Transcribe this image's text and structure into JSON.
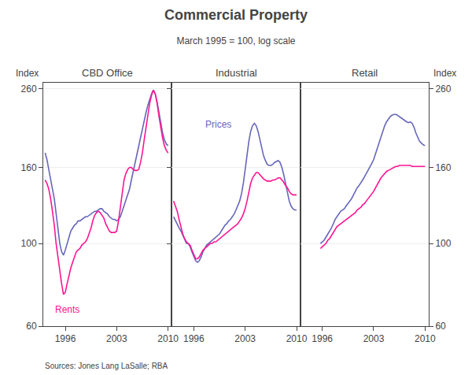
{
  "title": "Commercial Property",
  "subtitle": "March 1995 = 100, log scale",
  "source": "Sources: Jones Lang LaSalle; RBA",
  "chart_data": [
    {
      "type": "line",
      "title": "CBD Office",
      "ylabel": "Index",
      "log": "y",
      "grid": "y",
      "xlim": [
        1993,
        2010.5
      ],
      "xticks": [
        1996,
        2003,
        2010
      ],
      "ylim": [
        60,
        270
      ],
      "yticks": [
        60,
        100,
        160,
        260
      ],
      "x": [
        1993.25,
        1993.5,
        1993.75,
        1994,
        1994.25,
        1994.5,
        1994.75,
        1995,
        1995.25,
        1995.5,
        1995.75,
        1996,
        1996.25,
        1996.5,
        1996.75,
        1997,
        1997.25,
        1997.5,
        1997.75,
        1998,
        1998.25,
        1998.5,
        1998.75,
        1999,
        1999.25,
        1999.5,
        1999.75,
        2000,
        2000.25,
        2000.5,
        2000.75,
        2001,
        2001.25,
        2001.5,
        2001.75,
        2002,
        2002.25,
        2002.5,
        2002.75,
        2003,
        2003.25,
        2003.5,
        2003.75,
        2004,
        2004.25,
        2004.5,
        2004.75,
        2005,
        2005.25,
        2005.5,
        2005.75,
        2006,
        2006.25,
        2006.5,
        2006.75,
        2007,
        2007.25,
        2007.5,
        2007.75,
        2008,
        2008.25,
        2008.5,
        2008.75,
        2009,
        2009.25,
        2009.5,
        2009.75,
        2010
      ],
      "series": [
        {
          "color": "#6666BB",
          "values": [
            175,
            168,
            158,
            150,
            140,
            132,
            120,
            110,
            100,
            95,
            93,
            96,
            100,
            105,
            108,
            110,
            112,
            113,
            115,
            115,
            116,
            117,
            118,
            118,
            119,
            120,
            121,
            122,
            122,
            123,
            124,
            124,
            122,
            121,
            120,
            118,
            117,
            116,
            116,
            115,
            116,
            118,
            122,
            126,
            130,
            135,
            140,
            148,
            156,
            165,
            175,
            185,
            195,
            205,
            215,
            225,
            235,
            245,
            252,
            258,
            252,
            240,
            225,
            210,
            198,
            190,
            185,
            183
          ]
        },
        {
          "color": "#FF1493",
          "values": [
            148,
            145,
            140,
            132,
            122,
            112,
            100,
            92,
            83,
            78,
            73,
            74,
            78,
            82,
            86,
            89,
            92,
            95,
            96,
            97,
            99,
            100,
            101,
            103,
            106,
            110,
            115,
            119,
            121,
            122,
            121,
            119,
            117,
            113,
            110,
            108,
            107,
            107,
            107,
            108,
            115,
            125,
            138,
            148,
            154,
            158,
            160,
            160,
            158,
            157,
            157,
            158,
            165,
            175,
            190,
            205,
            220,
            238,
            250,
            258,
            252,
            238,
            220,
            205,
            192,
            183,
            178,
            175
          ]
        }
      ],
      "annotations": [
        {
          "text": "Rents",
          "color": "#FF1493"
        }
      ]
    },
    {
      "type": "line",
      "title": "Industrial",
      "tick_labels": "x",
      "log": "y",
      "grid": "y",
      "xlim": [
        1993,
        2010.5
      ],
      "xticks": [
        1996,
        2003,
        2010
      ],
      "ylim": [
        60,
        270
      ],
      "yticks": [
        60,
        100,
        160,
        260
      ],
      "x": [
        1993.25,
        1993.5,
        1993.75,
        1994,
        1994.25,
        1994.5,
        1994.75,
        1995,
        1995.25,
        1995.5,
        1995.75,
        1996,
        1996.25,
        1996.5,
        1996.75,
        1997,
        1997.25,
        1997.5,
        1997.75,
        1998,
        1998.25,
        1998.5,
        1998.75,
        1999,
        1999.25,
        1999.5,
        1999.75,
        2000,
        2000.25,
        2000.5,
        2000.75,
        2001,
        2001.25,
        2001.5,
        2001.75,
        2002,
        2002.25,
        2002.5,
        2002.75,
        2003,
        2003.25,
        2003.5,
        2003.75,
        2004,
        2004.25,
        2004.5,
        2004.75,
        2005,
        2005.25,
        2005.5,
        2005.75,
        2006,
        2006.25,
        2006.5,
        2006.75,
        2007,
        2007.25,
        2007.5,
        2007.75,
        2008,
        2008.25,
        2008.5,
        2008.75,
        2009,
        2009.25,
        2009.5,
        2009.75,
        2010
      ],
      "series": [
        {
          "color": "#6666BB",
          "values": [
            118,
            115,
            112,
            110,
            108,
            105,
            102,
            100,
            100,
            98,
            95,
            92,
            90,
            89,
            90,
            92,
            95,
            97,
            99,
            100,
            101,
            102,
            103,
            104,
            105,
            106,
            108,
            110,
            112,
            113,
            115,
            116,
            118,
            120,
            123,
            126,
            130,
            136,
            145,
            158,
            173,
            188,
            200,
            207,
            210,
            207,
            200,
            190,
            180,
            172,
            167,
            163,
            162,
            162,
            163,
            165,
            166,
            167,
            165,
            160,
            153,
            145,
            137,
            130,
            126,
            124,
            123,
            123
          ]
        },
        {
          "color": "#FF1493",
          "values": [
            130,
            126,
            122,
            116,
            110,
            106,
            103,
            101,
            100,
            99,
            96,
            93,
            91,
            91,
            92,
            94,
            96,
            97,
            98,
            99,
            100,
            100,
            101,
            101,
            102,
            103,
            104,
            105,
            106,
            107,
            108,
            109,
            110,
            111,
            112,
            113,
            115,
            117,
            120,
            124,
            130,
            138,
            145,
            150,
            153,
            155,
            155,
            153,
            151,
            149,
            148,
            147,
            147,
            147,
            148,
            148,
            149,
            150,
            150,
            148,
            146,
            143,
            141,
            138,
            136,
            135,
            135,
            135
          ]
        }
      ],
      "annotations": [
        {
          "text": "Prices",
          "color": "#6666BB"
        }
      ]
    },
    {
      "type": "line",
      "title": "Retail",
      "ylabel": "Index",
      "log": "y",
      "grid": "y",
      "xlim": [
        1993,
        2010.5
      ],
      "xticks": [
        1996,
        2003,
        2010
      ],
      "ylim": [
        60,
        270
      ],
      "yticks": [
        60,
        100,
        160,
        260
      ],
      "x": [
        1995.75,
        1996,
        1996.25,
        1996.5,
        1996.75,
        1997,
        1997.25,
        1997.5,
        1997.75,
        1998,
        1998.25,
        1998.5,
        1998.75,
        1999,
        1999.25,
        1999.5,
        1999.75,
        2000,
        2000.25,
        2000.5,
        2000.75,
        2001,
        2001.25,
        2001.5,
        2001.75,
        2002,
        2002.25,
        2002.5,
        2002.75,
        2003,
        2003.25,
        2003.5,
        2003.75,
        2004,
        2004.25,
        2004.5,
        2004.75,
        2005,
        2005.25,
        2005.5,
        2005.75,
        2006,
        2006.25,
        2006.5,
        2006.75,
        2007,
        2007.25,
        2007.5,
        2007.75,
        2008,
        2008.25,
        2008.5,
        2008.75,
        2009,
        2009.25,
        2009.5,
        2009.75,
        2010
      ],
      "series": [
        {
          "color": "#6666BB",
          "values": [
            100,
            101,
            102,
            104,
            106,
            108,
            110,
            113,
            116,
            118,
            120,
            122,
            123,
            124,
            126,
            128,
            130,
            132,
            135,
            138,
            141,
            143,
            146,
            148,
            151,
            154,
            157,
            160,
            164,
            168,
            174,
            180,
            186,
            193,
            200,
            207,
            212,
            216,
            219,
            221,
            222,
            222,
            221,
            219,
            217,
            215,
            213,
            212,
            211,
            212,
            210,
            205,
            198,
            192,
            188,
            186,
            184,
            183
          ]
        },
        {
          "color": "#FF1493",
          "values": [
            97,
            98,
            99,
            100,
            102,
            103,
            105,
            107,
            109,
            111,
            112,
            113,
            114,
            115,
            116,
            117,
            118,
            119,
            120,
            121,
            123,
            124,
            125,
            127,
            128,
            130,
            132,
            134,
            136,
            138,
            141,
            144,
            147,
            150,
            152,
            154,
            156,
            157,
            158,
            159,
            160,
            161,
            161,
            162,
            162,
            162,
            162,
            162,
            162,
            162,
            161,
            161,
            161,
            161,
            161,
            161,
            161,
            161
          ]
        }
      ]
    }
  ]
}
